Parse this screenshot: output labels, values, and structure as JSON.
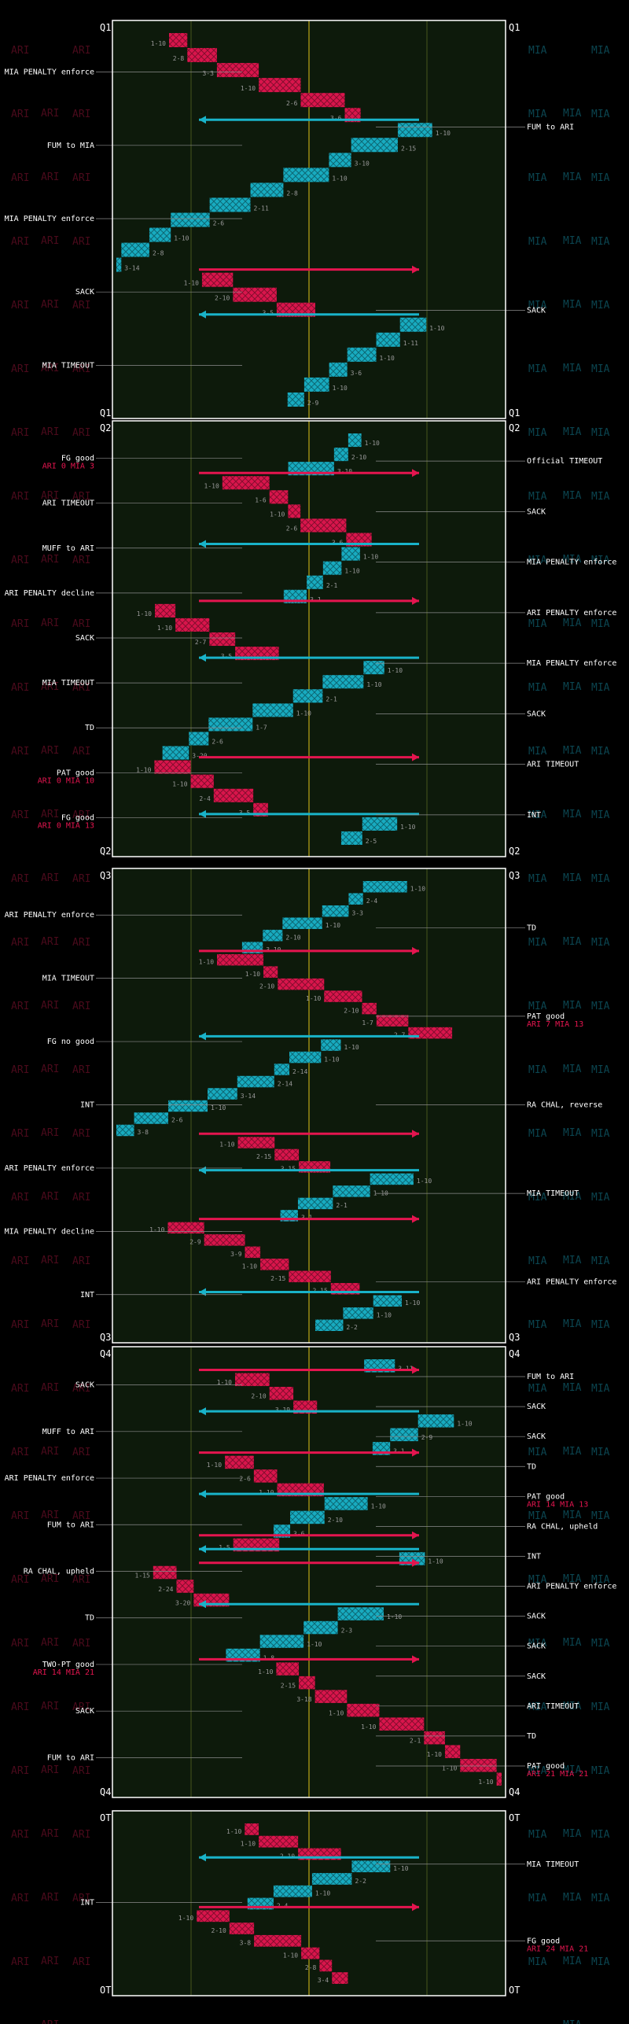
{
  "teams": {
    "home": "ARI",
    "away": "MIA"
  },
  "colors": {
    "ari": "#e4154f",
    "mia": "#19b3c9",
    "field": "#0d1a0b",
    "yard_line": "#46561e",
    "midfield": "#9a8b14",
    "ot_line": "#ffffff"
  },
  "chart_data": {
    "type": "drive_chart",
    "quarters": [
      {
        "name": "Q1",
        "end_label": "Q1",
        "left_events": [
          {
            "label": "MIA PENALTY enforce"
          },
          {
            "label": "FUM to MIA"
          },
          {
            "label": "MIA PENALTY enforce"
          },
          {
            "label": "SACK"
          },
          {
            "label": "MIA TIMEOUT"
          }
        ],
        "right_events": [
          {
            "label": "FUM to ARI"
          },
          {
            "label": "SACK"
          }
        ],
        "plays": [
          {
            "team": "ARI",
            "down": "1-10"
          },
          {
            "team": "ARI",
            "down": "2-8"
          },
          {
            "team": "ARI",
            "down": "3-3"
          },
          {
            "team": "ARI",
            "down": "1-10"
          },
          {
            "team": "ARI",
            "down": "2-6"
          },
          {
            "team": "ARI",
            "down": "3-6"
          },
          {
            "team": "MIA",
            "down": "1-10"
          },
          {
            "team": "MIA",
            "down": "2-15"
          },
          {
            "team": "MIA",
            "down": "3-10"
          },
          {
            "team": "MIA",
            "down": "1-10"
          },
          {
            "team": "MIA",
            "down": "2-8"
          },
          {
            "team": "MIA",
            "down": "2-11"
          },
          {
            "team": "MIA",
            "down": "2-6"
          },
          {
            "team": "MIA",
            "down": "1-10"
          },
          {
            "team": "MIA",
            "down": "2-8"
          },
          {
            "team": "MIA",
            "down": "3-14"
          },
          {
            "team": "ARI",
            "down": "1-10"
          },
          {
            "team": "ARI",
            "down": "2-10"
          },
          {
            "team": "ARI",
            "down": "3-5"
          },
          {
            "team": "MIA",
            "down": "1-10"
          },
          {
            "team": "MIA",
            "down": "1-11"
          },
          {
            "team": "MIA",
            "down": "1-10"
          },
          {
            "team": "MIA",
            "down": "3-6"
          },
          {
            "team": "MIA",
            "down": "1-10"
          },
          {
            "team": "MIA",
            "down": "2-9"
          }
        ]
      },
      {
        "name": "Q2",
        "end_label": "Q2",
        "left_events": [
          {
            "label": "FG good",
            "score": "ARI 0 MIA 3"
          },
          {
            "label": "ARI TIMEOUT"
          },
          {
            "label": "MUFF to ARI"
          },
          {
            "label": "ARI PENALTY decline"
          },
          {
            "label": "SACK"
          },
          {
            "label": "MIA TIMEOUT"
          },
          {
            "label": "TD"
          },
          {
            "label": "PAT good",
            "score": "ARI 0 MIA 10"
          },
          {
            "label": "FG good",
            "score": "ARI 0 MIA 13"
          }
        ],
        "right_events": [
          {
            "label": "Official TIMEOUT"
          },
          {
            "label": "SACK"
          },
          {
            "label": "MIA PENALTY enforce"
          },
          {
            "label": "ARI PENALTY enforce"
          },
          {
            "label": "MIA PENALTY enforce"
          },
          {
            "label": "SACK"
          },
          {
            "label": "ARI TIMEOUT"
          },
          {
            "label": "INT"
          }
        ],
        "plays": [
          {
            "team": "MIA",
            "down": "1-10"
          },
          {
            "team": "MIA",
            "down": "2-10"
          },
          {
            "team": "MIA",
            "down": "3-10"
          },
          {
            "team": "ARI",
            "down": "1-10"
          },
          {
            "team": "ARI",
            "down": "1-6"
          },
          {
            "team": "ARI",
            "down": "1-10"
          },
          {
            "team": "ARI",
            "down": "2-6"
          },
          {
            "team": "ARI",
            "down": "3-6"
          },
          {
            "team": "MIA",
            "down": "1-10"
          },
          {
            "team": "MIA",
            "down": "1-10"
          },
          {
            "team": "MIA",
            "down": "2-1"
          },
          {
            "team": "MIA",
            "down": "3-1"
          },
          {
            "team": "ARI",
            "down": "1-10"
          },
          {
            "team": "ARI",
            "down": "1-10"
          },
          {
            "team": "ARI",
            "down": "2-7"
          },
          {
            "team": "ARI",
            "down": "3-5"
          },
          {
            "team": "MIA",
            "down": "1-10"
          },
          {
            "team": "MIA",
            "down": "1-10"
          },
          {
            "team": "MIA",
            "down": "2-1"
          },
          {
            "team": "MIA",
            "down": "1-10"
          },
          {
            "team": "MIA",
            "down": "1-7"
          },
          {
            "team": "MIA",
            "down": "2-6"
          },
          {
            "team": "MIA",
            "down": "3-20"
          },
          {
            "team": "ARI",
            "down": "1-10"
          },
          {
            "team": "ARI",
            "down": "1-10"
          },
          {
            "team": "ARI",
            "down": "2-4"
          },
          {
            "team": "ARI",
            "down": "3-5"
          },
          {
            "team": "MIA",
            "down": "1-10"
          },
          {
            "team": "MIA",
            "down": "2-5"
          }
        ]
      },
      {
        "name": "Q3",
        "end_label": "Q3",
        "left_events": [
          {
            "label": "ARI PENALTY enforce"
          },
          {
            "label": "MIA TIMEOUT"
          },
          {
            "label": "FG no good"
          },
          {
            "label": "INT"
          },
          {
            "label": "ARI PENALTY enforce"
          },
          {
            "label": "MIA PENALTY decline"
          },
          {
            "label": "INT"
          }
        ],
        "right_events": [
          {
            "label": "TD"
          },
          {
            "label": "PAT good",
            "score": "ARI 7 MIA 13"
          },
          {
            "label": "RA CHAL, reverse"
          },
          {
            "label": "MIA TIMEOUT"
          },
          {
            "label": "ARI PENALTY enforce"
          }
        ],
        "plays": [
          {
            "team": "MIA",
            "down": "1-10"
          },
          {
            "team": "MIA",
            "down": "2-4"
          },
          {
            "team": "MIA",
            "down": "3-3"
          },
          {
            "team": "MIA",
            "down": "1-10"
          },
          {
            "team": "MIA",
            "down": "2-10"
          },
          {
            "team": "MIA",
            "down": "3-10"
          },
          {
            "team": "ARI",
            "down": "1-10"
          },
          {
            "team": "ARI",
            "down": "1-10"
          },
          {
            "team": "ARI",
            "down": "2-10"
          },
          {
            "team": "ARI",
            "down": "1-10"
          },
          {
            "team": "ARI",
            "down": "2-10"
          },
          {
            "team": "ARI",
            "down": "1-7"
          },
          {
            "team": "ARI",
            "down": "2-7"
          },
          {
            "team": "MIA",
            "down": "1-10"
          },
          {
            "team": "MIA",
            "down": "1-10"
          },
          {
            "team": "MIA",
            "down": "2-14"
          },
          {
            "team": "MIA",
            "down": "2-14"
          },
          {
            "team": "MIA",
            "down": "3-14"
          },
          {
            "team": "MIA",
            "down": "1-10"
          },
          {
            "team": "MIA",
            "down": "2-6"
          },
          {
            "team": "MIA",
            "down": "3-8"
          },
          {
            "team": "ARI",
            "down": "1-10"
          },
          {
            "team": "ARI",
            "down": "2-15"
          },
          {
            "team": "ARI",
            "down": "3-15"
          },
          {
            "team": "MIA",
            "down": "1-10"
          },
          {
            "team": "MIA",
            "down": "1-10"
          },
          {
            "team": "MIA",
            "down": "2-1"
          },
          {
            "team": "MIA",
            "down": "3-1"
          },
          {
            "team": "ARI",
            "down": "1-10"
          },
          {
            "team": "ARI",
            "down": "2-9"
          },
          {
            "team": "ARI",
            "down": "3-9"
          },
          {
            "team": "ARI",
            "down": "1-10"
          },
          {
            "team": "ARI",
            "down": "2-15"
          },
          {
            "team": "ARI",
            "down": "2-15"
          },
          {
            "team": "MIA",
            "down": "1-10"
          },
          {
            "team": "MIA",
            "down": "1-10"
          },
          {
            "team": "MIA",
            "down": "2-2"
          }
        ]
      },
      {
        "name": "Q4",
        "end_label": "Q4",
        "left_events": [
          {
            "label": "SACK"
          },
          {
            "label": "MUFF to ARI"
          },
          {
            "label": "ARI PENALTY enforce"
          },
          {
            "label": "FUM to ARI"
          },
          {
            "label": "RA CHAL, upheld"
          },
          {
            "label": "TD"
          },
          {
            "label": "TWO-PT good",
            "score": "ARI 14 MIA 21"
          },
          {
            "label": "SACK"
          },
          {
            "label": "FUM to ARI"
          }
        ],
        "right_events": [
          {
            "label": "FUM to ARI"
          },
          {
            "label": "SACK"
          },
          {
            "label": "SACK"
          },
          {
            "label": "TD"
          },
          {
            "label": "PAT good",
            "score": "ARI 14 MIA 13"
          },
          {
            "label": "RA CHAL, upheld"
          },
          {
            "label": "INT"
          },
          {
            "label": "ARI PENALTY enforce"
          },
          {
            "label": "SACK"
          },
          {
            "label": "SACK"
          },
          {
            "label": "SACK"
          },
          {
            "label": "ARI TIMEOUT"
          },
          {
            "label": "TD"
          },
          {
            "label": "PAT good",
            "score": "ARI 21 MIA 21"
          }
        ],
        "plays": [
          {
            "team": "MIA",
            "down": "3-11"
          },
          {
            "team": "ARI",
            "down": "1-10"
          },
          {
            "team": "ARI",
            "down": "2-10"
          },
          {
            "team": "ARI",
            "down": "3-19"
          },
          {
            "team": "MIA",
            "down": "1-10"
          },
          {
            "team": "MIA",
            "down": "2-9"
          },
          {
            "team": "MIA",
            "down": "3-1"
          },
          {
            "team": "ARI",
            "down": "1-10"
          },
          {
            "team": "ARI",
            "down": "2-6"
          },
          {
            "team": "ARI",
            "down": "1-10"
          },
          {
            "team": "MIA",
            "down": "1-10"
          },
          {
            "team": "MIA",
            "down": "2-10"
          },
          {
            "team": "MIA",
            "down": "3-6"
          },
          {
            "team": "ARI",
            "down": "1-5"
          },
          {
            "team": "MIA",
            "down": "1-10"
          },
          {
            "team": "ARI",
            "down": "1-15"
          },
          {
            "team": "ARI",
            "down": "2-24"
          },
          {
            "team": "ARI",
            "down": "3-20"
          },
          {
            "team": "MIA",
            "down": "1-10"
          },
          {
            "team": "MIA",
            "down": "2-3"
          },
          {
            "team": "MIA",
            "down": "1-10"
          },
          {
            "team": "MIA",
            "down": "1-8"
          },
          {
            "team": "ARI",
            "down": "1-10"
          },
          {
            "team": "ARI",
            "down": "2-15"
          },
          {
            "team": "ARI",
            "down": "3-18"
          },
          {
            "team": "ARI",
            "down": "1-10"
          },
          {
            "team": "ARI",
            "down": "1-10"
          },
          {
            "team": "ARI",
            "down": "2-1"
          },
          {
            "team": "ARI",
            "down": "1-10"
          },
          {
            "team": "ARI",
            "down": "1-10"
          },
          {
            "team": "ARI",
            "down": "1-10"
          }
        ]
      },
      {
        "name": "OT",
        "end_label": "OT",
        "left_events": [
          {
            "label": "INT"
          }
        ],
        "right_events": [
          {
            "label": "MIA TIMEOUT"
          },
          {
            "label": "FG good",
            "score": "ARI 24 MIA 21"
          }
        ],
        "plays": [
          {
            "team": "ARI",
            "down": "1-10"
          },
          {
            "team": "ARI",
            "down": "1-10"
          },
          {
            "team": "ARI",
            "down": "2-10"
          },
          {
            "team": "MIA",
            "down": "1-10"
          },
          {
            "team": "MIA",
            "down": "2-2"
          },
          {
            "team": "MIA",
            "down": "1-10"
          },
          {
            "team": "MIA",
            "down": "2-4"
          },
          {
            "team": "ARI",
            "down": "1-10"
          },
          {
            "team": "ARI",
            "down": "2-10"
          },
          {
            "team": "ARI",
            "down": "3-8"
          },
          {
            "team": "ARI",
            "down": "1-10"
          },
          {
            "team": "ARI",
            "down": "2-8"
          },
          {
            "team": "ARI",
            "down": "3-4"
          }
        ]
      }
    ]
  }
}
